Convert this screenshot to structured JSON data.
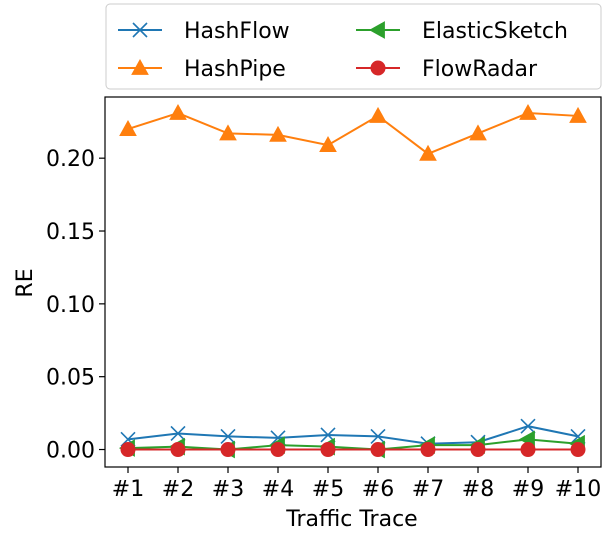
{
  "chart_data": {
    "type": "line",
    "xlabel": "Traffic Trace",
    "ylabel": "RE",
    "categories": [
      "#1",
      "#2",
      "#3",
      "#4",
      "#5",
      "#6",
      "#7",
      "#8",
      "#9",
      "#10"
    ],
    "ylim": [
      -0.012,
      0.242
    ],
    "yticks": [
      0.0,
      0.05,
      0.1,
      0.15,
      0.2
    ],
    "ytick_labels": [
      "0.00",
      "0.05",
      "0.10",
      "0.15",
      "0.20"
    ],
    "grid": false,
    "legend_position": "top, outside, two columns",
    "series": [
      {
        "name": "HashFlow",
        "color": "#1f77b4",
        "marker": "x",
        "values": [
          0.007,
          0.011,
          0.009,
          0.008,
          0.01,
          0.009,
          0.004,
          0.005,
          0.016,
          0.009
        ]
      },
      {
        "name": "HashPipe",
        "color": "#ff7f0e",
        "marker": "triangle-up",
        "values": [
          0.22,
          0.231,
          0.217,
          0.216,
          0.209,
          0.229,
          0.203,
          0.217,
          0.231,
          0.229
        ]
      },
      {
        "name": "ElasticSketch",
        "color": "#2ca02c",
        "marker": "triangle-left",
        "values": [
          0.001,
          0.002,
          0.0,
          0.003,
          0.002,
          0.0,
          0.003,
          0.003,
          0.007,
          0.004
        ]
      },
      {
        "name": "FlowRadar",
        "color": "#d62728",
        "marker": "circle",
        "values": [
          0.0,
          0.0,
          0.0,
          0.0,
          0.0,
          0.0,
          0.0,
          0.0,
          0.0,
          0.0
        ]
      }
    ]
  }
}
